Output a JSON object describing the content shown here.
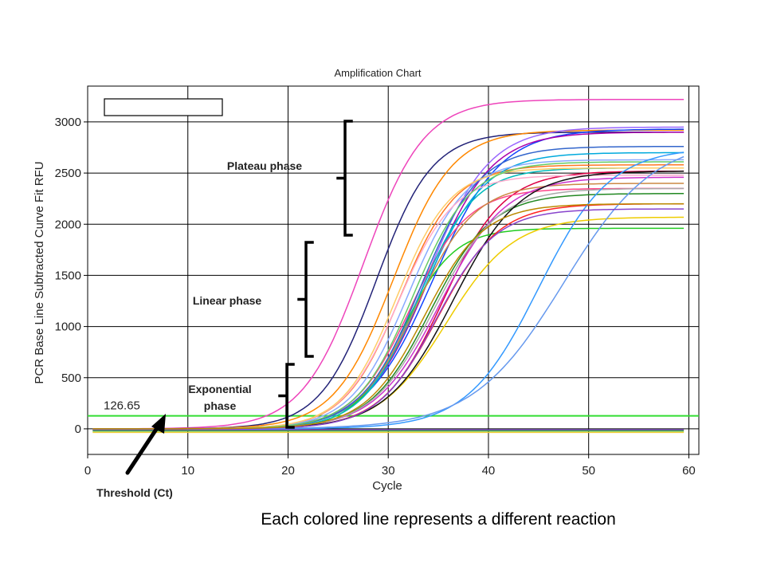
{
  "chart_data": {
    "type": "line",
    "title": "Amplification Chart",
    "xlabel": "Cycle",
    "ylabel": "PCR Base Line Subtracted Curve Fit RFU",
    "xlim": [
      0,
      61
    ],
    "ylim": [
      -250,
      3350
    ],
    "x_ticks": [
      0,
      10,
      20,
      30,
      40,
      50,
      60
    ],
    "y_ticks": [
      0,
      500,
      1000,
      1500,
      2000,
      2500,
      3000
    ],
    "grid": true,
    "threshold": {
      "value": 126.65,
      "label": "126.65",
      "color": "#33dd33"
    },
    "series": [
      {
        "color": "#ee44bb",
        "midpoint": 27.5,
        "plateau": 3220,
        "slope": 0.33
      },
      {
        "color": "#222277",
        "midpoint": 28.8,
        "plateau": 2900,
        "slope": 0.36
      },
      {
        "color": "#ff8800",
        "midpoint": 30.5,
        "plateau": 2920,
        "slope": 0.34
      },
      {
        "color": "#ff7722",
        "midpoint": 31.2,
        "plateau": 2580,
        "slope": 0.36
      },
      {
        "color": "#1144ff",
        "midpoint": 34.5,
        "plateau": 2930,
        "slope": 0.3
      },
      {
        "color": "#9966ff",
        "midpoint": 33.8,
        "plateau": 2950,
        "slope": 0.32
      },
      {
        "color": "#aa00aa",
        "midpoint": 34.0,
        "plateau": 2900,
        "slope": 0.32
      },
      {
        "color": "#00aadd",
        "midpoint": 33.5,
        "plateau": 2700,
        "slope": 0.33
      },
      {
        "color": "#dd0044",
        "midpoint": 35.5,
        "plateau": 2520,
        "slope": 0.33
      },
      {
        "color": "#ff4488",
        "midpoint": 32.2,
        "plateau": 2350,
        "slope": 0.35
      },
      {
        "color": "#22cc22",
        "midpoint": 31.5,
        "plateau": 1960,
        "slope": 0.4
      },
      {
        "color": "#eecc00",
        "midpoint": 35.8,
        "plateau": 2070,
        "slope": 0.3
      },
      {
        "color": "#00bbbb",
        "midpoint": 33.0,
        "plateau": 2550,
        "slope": 0.36
      },
      {
        "color": "#88aaff",
        "midpoint": 32.0,
        "plateau": 2630,
        "slope": 0.35
      },
      {
        "color": "#ffaacc",
        "midpoint": 31.0,
        "plateau": 2480,
        "slope": 0.36
      },
      {
        "color": "#cc8844",
        "midpoint": 32.8,
        "plateau": 2400,
        "slope": 0.34
      },
      {
        "color": "#228822",
        "midpoint": 34.2,
        "plateau": 2300,
        "slope": 0.33
      },
      {
        "color": "#ff2222",
        "midpoint": 35.0,
        "plateau": 2200,
        "slope": 0.33
      },
      {
        "color": "#3366cc",
        "midpoint": 33.2,
        "plateau": 2760,
        "slope": 0.34
      },
      {
        "color": "#cc33cc",
        "midpoint": 35.2,
        "plateau": 2460,
        "slope": 0.31
      },
      {
        "color": "#aaaaaa",
        "midpoint": 34.6,
        "plateau": 2350,
        "slope": 0.32
      },
      {
        "color": "#111111",
        "midpoint": 36.5,
        "plateau": 2520,
        "slope": 0.3
      },
      {
        "color": "#ffcc66",
        "midpoint": 30.8,
        "plateau": 2550,
        "slope": 0.37
      },
      {
        "color": "#66cc66",
        "midpoint": 32.5,
        "plateau": 2610,
        "slope": 0.35
      },
      {
        "color": "#3399ff",
        "midpoint": 45.0,
        "plateau": 2750,
        "slope": 0.28
      },
      {
        "color": "#6699ee",
        "midpoint": 47.5,
        "plateau": 2850,
        "slope": 0.22
      },
      {
        "color": "#8844cc",
        "midpoint": 34.8,
        "plateau": 2150,
        "slope": 0.34
      },
      {
        "color": "#bb8800",
        "midpoint": 33.6,
        "plateau": 2200,
        "slope": 0.34
      }
    ],
    "flat_series": [
      {
        "color": "#8844dd",
        "y": -10
      },
      {
        "color": "#eecc33",
        "y": -35
      },
      {
        "color": "#33aa33",
        "y": -20
      }
    ],
    "annotations": {
      "plateau": "Plateau phase",
      "linear": "Linear phase",
      "exponential": "Exponential\nphase",
      "threshold": "Threshold (Ct)"
    }
  },
  "caption": "Each colored line represents a different reaction"
}
